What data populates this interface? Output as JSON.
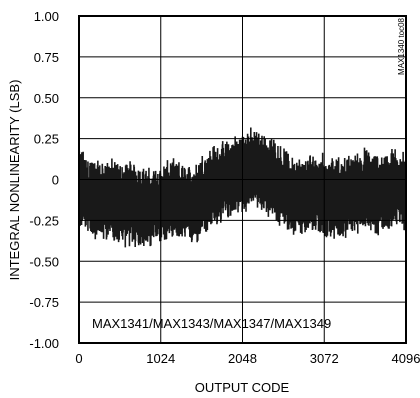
{
  "chart_data": {
    "type": "line",
    "xlabel": "OUTPUT CODE",
    "ylabel": "INTEGRAL NONLINEARITY (LSB)",
    "annotation": "MAX1341/MAX1343/MAX1347/MAX1349",
    "figure_id": "MAX1340 toc08",
    "xlim": [
      0,
      4096
    ],
    "ylim": [
      -1.0,
      1.0
    ],
    "x_ticks": [
      0,
      1024,
      2048,
      3072,
      4096
    ],
    "x_tick_labels": [
      "0",
      "1024",
      "2048",
      "3072",
      "4096"
    ],
    "y_ticks": [
      1.0,
      0.75,
      0.5,
      0.25,
      0,
      -0.25,
      -0.5,
      -0.75,
      -1.0
    ],
    "y_tick_labels": [
      "1.00",
      "0.75",
      "0.50",
      "0.25",
      "0",
      "-0.25",
      "-0.50",
      "-0.75",
      "-1.00"
    ],
    "grid": true,
    "series": [
      {
        "color": "#000000",
        "x": [
          0,
          128,
          256,
          384,
          512,
          640,
          768,
          896,
          1024,
          1152,
          1280,
          1408,
          1536,
          1664,
          1792,
          1920,
          2048,
          2176,
          2304,
          2432,
          2560,
          2688,
          2816,
          2944,
          3072,
          3200,
          3328,
          3456,
          3584,
          3712,
          3840,
          3968,
          4095
        ],
        "center": [
          -0.05,
          -0.1,
          -0.13,
          -0.12,
          -0.15,
          -0.14,
          -0.17,
          -0.18,
          -0.15,
          -0.13,
          -0.14,
          -0.16,
          -0.1,
          -0.05,
          -0.02,
          0.02,
          0.05,
          0.07,
          0.04,
          0.0,
          -0.05,
          -0.1,
          -0.12,
          -0.08,
          -0.1,
          -0.12,
          -0.11,
          -0.08,
          -0.06,
          -0.1,
          -0.07,
          -0.05,
          -0.08
        ],
        "spread": [
          0.2,
          0.21,
          0.2,
          0.21,
          0.21,
          0.22,
          0.22,
          0.2,
          0.2,
          0.21,
          0.2,
          0.2,
          0.22,
          0.22,
          0.2,
          0.2,
          0.21,
          0.2,
          0.2,
          0.21,
          0.2,
          0.21,
          0.2,
          0.21,
          0.22,
          0.2,
          0.21,
          0.2,
          0.21,
          0.21,
          0.2,
          0.21,
          0.2
        ]
      }
    ]
  }
}
